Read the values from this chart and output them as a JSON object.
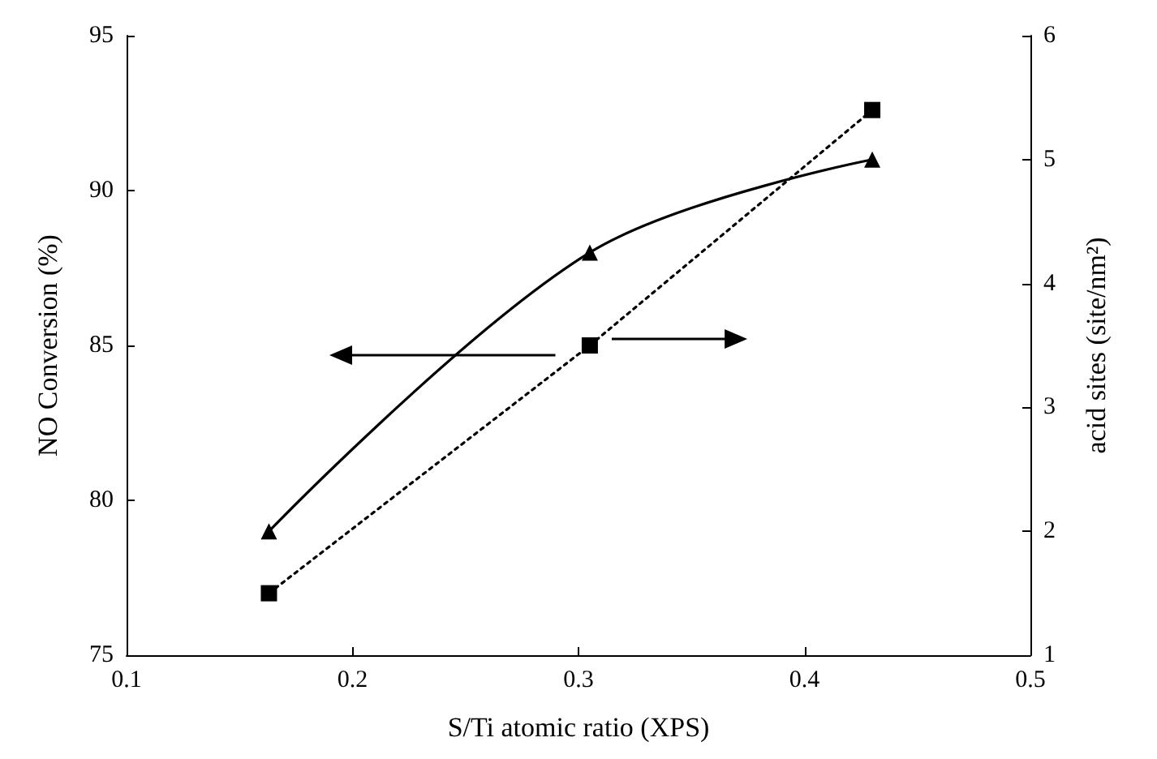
{
  "chart_data": {
    "type": "line",
    "xlabel": "S/Ti atomic ratio (XPS)",
    "ylabel": "NO Conversion (%)",
    "y2label": "acid sites (site/nm²)",
    "x": [
      0.163,
      0.305,
      0.43
    ],
    "series": [
      {
        "color": "#000000",
        "values": [
          79,
          88,
          91
        ],
        "marker": "triangle",
        "line_style": "solid"
      },
      {
        "color": "#000000",
        "values": [
          1.5,
          3.5,
          5.4
        ],
        "axis": "y2",
        "marker": "square",
        "line_style": "dotted"
      }
    ],
    "xlim": [
      0.1,
      0.5
    ],
    "xticks": [
      0.1,
      0.2,
      0.3,
      0.4,
      0.5
    ],
    "ylim": [
      75,
      95
    ],
    "yticks": [
      75,
      80,
      85,
      90,
      95
    ],
    "y2lim": [
      1,
      6
    ],
    "y2ticks": [
      1,
      2,
      3,
      4,
      5,
      6
    ],
    "grid": false
  }
}
